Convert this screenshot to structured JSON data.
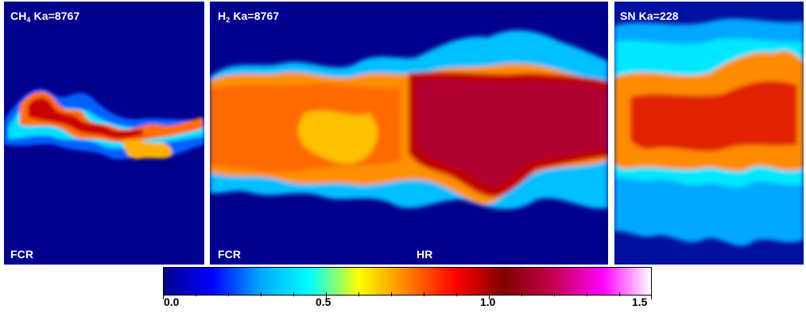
{
  "panels": [
    {
      "title_prefix": "CH",
      "title_sub": "4",
      "title_suffix": " Ka=8767",
      "corner_label": "FCR"
    },
    {
      "title_prefix": "H",
      "title_sub": "2",
      "title_suffix": " Ka=8767",
      "corner_label_left": "FCR",
      "corner_label_right": "HR"
    },
    {
      "title_text": "SN Ka=228"
    }
  ],
  "colorbar": {
    "min": 0.0,
    "max": 1.5,
    "tick_labels": [
      "0.0",
      "0.5",
      "1.0",
      "1.5"
    ],
    "colors": [
      "#00008b",
      "#0000ff",
      "#00aaff",
      "#00ffff",
      "#ffff00",
      "#ff8000",
      "#ff0000",
      "#800000",
      "#c80050",
      "#ff00ff",
      "#ffffff"
    ]
  }
}
